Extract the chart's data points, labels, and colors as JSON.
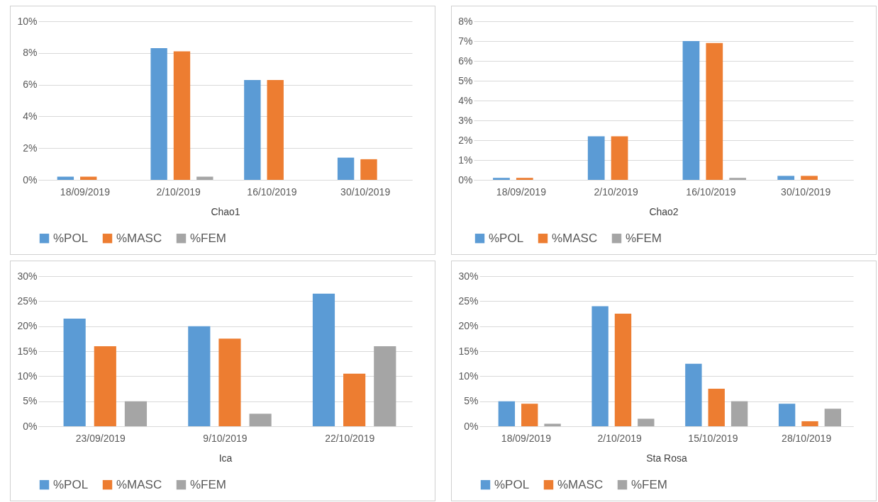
{
  "chart_data": [
    {
      "type": "bar",
      "xlabel": "Chao1",
      "categories": [
        "18/09/2019",
        "2/10/2019",
        "16/10/2019",
        "30/10/2019"
      ],
      "series": [
        {
          "name": "%POL",
          "color": "#5b9bd5",
          "values": [
            0.2,
            8.3,
            6.3,
            1.4
          ]
        },
        {
          "name": "%MASC",
          "color": "#ed7d31",
          "values": [
            0.2,
            8.1,
            6.3,
            1.3
          ]
        },
        {
          "name": "%FEM",
          "color": "#a5a5a5",
          "values": [
            0,
            0.2,
            0,
            0
          ]
        }
      ],
      "ylim": [
        0,
        10
      ],
      "yticks": [
        {
          "value": 0,
          "label": "0%"
        },
        {
          "value": 2,
          "label": "2%"
        },
        {
          "value": 4,
          "label": "4%"
        },
        {
          "value": 6,
          "label": "6%"
        },
        {
          "value": 8,
          "label": "8%"
        },
        {
          "value": 10,
          "label": "10%"
        }
      ],
      "grid": "y",
      "legend": "bottom"
    },
    {
      "type": "bar",
      "xlabel": "Chao2",
      "categories": [
        "18/09/2019",
        "2/10/2019",
        "16/10/2019",
        "30/10/2019"
      ],
      "series": [
        {
          "name": "%POL",
          "color": "#5b9bd5",
          "values": [
            0.1,
            2.2,
            7.0,
            0.2
          ]
        },
        {
          "name": "%MASC",
          "color": "#ed7d31",
          "values": [
            0.1,
            2.2,
            6.9,
            0.2
          ]
        },
        {
          "name": "%FEM",
          "color": "#a5a5a5",
          "values": [
            0,
            0,
            0.1,
            0
          ]
        }
      ],
      "ylim": [
        0,
        8
      ],
      "yticks": [
        {
          "value": 0,
          "label": "0%"
        },
        {
          "value": 1,
          "label": "1%"
        },
        {
          "value": 2,
          "label": "2%"
        },
        {
          "value": 3,
          "label": "3%"
        },
        {
          "value": 4,
          "label": "4%"
        },
        {
          "value": 5,
          "label": "5%"
        },
        {
          "value": 6,
          "label": "6%"
        },
        {
          "value": 7,
          "label": "7%"
        },
        {
          "value": 8,
          "label": "8%"
        }
      ],
      "grid": "y",
      "legend": "bottom"
    },
    {
      "type": "bar",
      "xlabel": "Ica",
      "categories": [
        "23/09/2019",
        "9/10/2019",
        "22/10/2019"
      ],
      "series": [
        {
          "name": "%POL",
          "color": "#5b9bd5",
          "values": [
            21.5,
            20,
            26.5
          ]
        },
        {
          "name": "%MASC",
          "color": "#ed7d31",
          "values": [
            16,
            17.5,
            10.5
          ]
        },
        {
          "name": "%FEM",
          "color": "#a5a5a5",
          "values": [
            5,
            2.5,
            16
          ]
        }
      ],
      "ylim": [
        0,
        30
      ],
      "yticks": [
        {
          "value": 0,
          "label": "0%"
        },
        {
          "value": 5,
          "label": "5%"
        },
        {
          "value": 10,
          "label": "10%"
        },
        {
          "value": 15,
          "label": "15%"
        },
        {
          "value": 20,
          "label": "20%"
        },
        {
          "value": 25,
          "label": "25%"
        },
        {
          "value": 30,
          "label": "30%"
        }
      ],
      "grid": "y",
      "legend": "bottom"
    },
    {
      "type": "bar",
      "xlabel": "Sta Rosa",
      "categories": [
        "18/09/2019",
        "2/10/2019",
        "15/10/2019",
        "28/10/2019"
      ],
      "series": [
        {
          "name": "%POL",
          "color": "#5b9bd5",
          "values": [
            5,
            24,
            12.5,
            4.5
          ]
        },
        {
          "name": "%MASC",
          "color": "#ed7d31",
          "values": [
            4.5,
            22.5,
            7.5,
            1
          ]
        },
        {
          "name": "%FEM",
          "color": "#a5a5a5",
          "values": [
            0.5,
            1.5,
            5,
            3.5
          ]
        }
      ],
      "ylim": [
        0,
        30
      ],
      "yticks": [
        {
          "value": 0,
          "label": "0%"
        },
        {
          "value": 5,
          "label": "5%"
        },
        {
          "value": 10,
          "label": "10%"
        },
        {
          "value": 15,
          "label": "15%"
        },
        {
          "value": 20,
          "label": "20%"
        },
        {
          "value": 25,
          "label": "25%"
        },
        {
          "value": 30,
          "label": "30%"
        }
      ],
      "grid": "y",
      "legend": "bottom"
    }
  ]
}
